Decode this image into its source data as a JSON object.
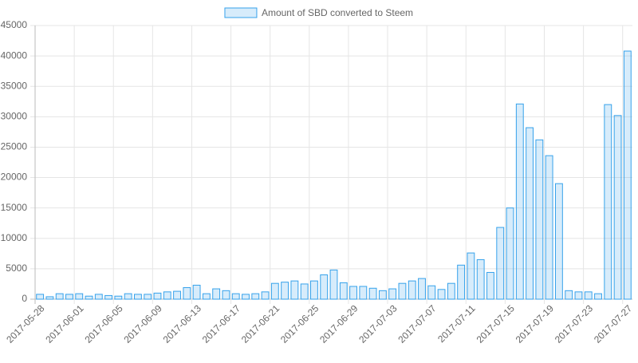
{
  "chart_data": {
    "type": "bar",
    "categories": [
      "2017-05-28",
      null,
      null,
      null,
      "2017-06-01",
      null,
      null,
      null,
      "2017-06-05",
      null,
      null,
      null,
      "2017-06-09",
      null,
      null,
      null,
      "2017-06-13",
      null,
      null,
      null,
      "2017-06-17",
      null,
      null,
      null,
      "2017-06-21",
      null,
      null,
      null,
      "2017-06-25",
      null,
      null,
      null,
      "2017-06-29",
      null,
      null,
      null,
      "2017-07-03",
      null,
      null,
      null,
      "2017-07-07",
      null,
      null,
      null,
      "2017-07-11",
      null,
      null,
      null,
      "2017-07-15",
      null,
      null,
      null,
      "2017-07-19",
      null,
      null,
      null,
      "2017-07-23",
      null,
      null,
      null,
      "2017-07-27"
    ],
    "series": [
      {
        "name": "Amount of SBD converted to Steem",
        "color": "#36a2eb",
        "values": [
          800,
          400,
          900,
          800,
          900,
          500,
          800,
          600,
          500,
          900,
          800,
          800,
          1000,
          1200,
          1300,
          1900,
          2300,
          900,
          1700,
          1400,
          900,
          800,
          900,
          1200,
          2600,
          2800,
          3000,
          2500,
          3000,
          4000,
          4800,
          2700,
          2100,
          2100,
          1800,
          1400,
          1700,
          2600,
          3000,
          3400,
          2200,
          1600,
          2600,
          5600,
          7600,
          6500,
          4400,
          11800,
          15000,
          32100,
          28200,
          26200,
          23600,
          19000,
          1400,
          1200,
          1200,
          900,
          32000,
          30200,
          40800
        ]
      }
    ],
    "ylim": [
      0,
      45000
    ],
    "yticks": [
      0,
      5000,
      10000,
      15000,
      20000,
      25000,
      30000,
      35000,
      40000,
      45000
    ],
    "grid": true,
    "legend": "top"
  }
}
